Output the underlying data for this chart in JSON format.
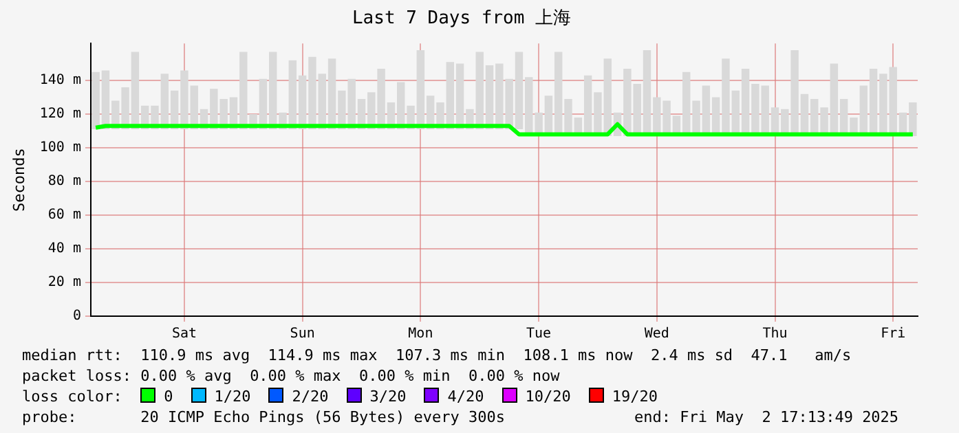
{
  "chart_data": {
    "type": "line",
    "title": "Last 7 Days from 上海",
    "ylabel": "Seconds",
    "categories": [
      null,
      null,
      null,
      null,
      null,
      null,
      null,
      null,
      null,
      "Sat",
      null,
      null,
      null,
      null,
      null,
      null,
      null,
      null,
      null,
      null,
      null,
      "Sun",
      null,
      null,
      null,
      null,
      null,
      null,
      null,
      null,
      null,
      null,
      null,
      "Mon",
      null,
      null,
      null,
      null,
      null,
      null,
      null,
      null,
      null,
      null,
      null,
      "Tue",
      null,
      null,
      null,
      null,
      null,
      null,
      null,
      null,
      null,
      null,
      null,
      "Wed",
      null,
      null,
      null,
      null,
      null,
      null,
      null,
      null,
      null,
      null,
      null,
      "Thu",
      null,
      null,
      null,
      null,
      null,
      null,
      null,
      null,
      null,
      null,
      null,
      "Fri",
      null,
      null
    ],
    "ylim": [
      0,
      162
    ],
    "yticks": [
      {
        "value": 0,
        "label": "0"
      },
      {
        "value": 20,
        "label": "20 m"
      },
      {
        "value": 40,
        "label": "40 m"
      },
      {
        "value": 60,
        "label": "60 m"
      },
      {
        "value": 80,
        "label": "80 m"
      },
      {
        "value": 100,
        "label": "100 m"
      },
      {
        "value": 120,
        "label": "120 m"
      },
      {
        "value": 140,
        "label": "140 m"
      }
    ],
    "grid": true,
    "legend": false,
    "marker": "none",
    "line_style": "solid",
    "series": [
      {
        "type": "bar",
        "color": "#d9d9d9",
        "base": [
          111,
          111,
          111,
          111,
          111,
          111,
          111,
          111,
          111,
          111,
          111,
          111,
          111,
          111,
          111,
          111,
          111,
          111,
          111,
          111,
          111,
          111,
          111,
          111,
          111,
          111,
          111,
          111,
          111,
          111,
          111,
          111,
          111,
          111,
          111,
          111,
          111,
          111,
          111,
          111,
          111,
          111,
          111,
          111,
          107,
          107,
          107,
          107,
          107,
          107,
          107,
          107,
          107,
          107,
          107,
          107,
          107,
          107,
          107,
          107,
          107,
          107,
          107,
          107,
          107,
          107,
          107,
          107,
          107,
          107,
          107,
          107,
          107,
          107,
          107,
          107,
          107,
          107,
          107,
          107,
          107,
          107,
          107,
          107
        ],
        "values": [
          34,
          35,
          17,
          25,
          46,
          14,
          14,
          33,
          23,
          35,
          26,
          12,
          24,
          18,
          19,
          46,
          9,
          30,
          46,
          10,
          41,
          32,
          43,
          33,
          42,
          23,
          30,
          18,
          22,
          36,
          16,
          28,
          14,
          47,
          20,
          16,
          40,
          39,
          12,
          46,
          38,
          39,
          30,
          46,
          35,
          14,
          24,
          50,
          22,
          11,
          36,
          26,
          46,
          14,
          40,
          31,
          51,
          23,
          21,
          12,
          38,
          21,
          30,
          23,
          46,
          27,
          40,
          31,
          30,
          17,
          16,
          51,
          25,
          22,
          17,
          43,
          22,
          11,
          30,
          40,
          37,
          41,
          14,
          20
        ]
      },
      {
        "color": "#00ff00",
        "values": [
          112,
          113,
          113,
          113,
          113,
          113,
          113,
          113,
          113,
          113,
          113,
          113,
          113,
          113,
          113,
          113,
          113,
          113,
          113,
          113,
          113,
          113,
          113,
          113,
          113,
          113,
          113,
          113,
          113,
          113,
          113,
          113,
          113,
          113,
          113,
          113,
          113,
          113,
          113,
          113,
          113,
          113,
          113,
          108,
          108,
          108,
          108,
          108,
          108,
          108,
          108,
          108,
          108,
          114,
          108,
          108,
          108,
          108,
          108,
          108,
          108,
          108,
          108,
          108,
          108,
          108,
          108,
          108,
          108,
          108,
          108,
          108,
          108,
          108,
          108,
          108,
          108,
          108,
          108,
          108,
          108,
          108,
          108,
          108
        ]
      }
    ],
    "annotations": [
      "median rtt:  110.9 ms avg  114.9 ms max  107.3 ms min  108.1 ms now  2.4 ms sd  47.1   am/s",
      "packet loss: 0.00 % avg  0.00 % max  0.00 % min  0.00 % now",
      "loss color:",
      "0",
      "1/20",
      "2/20",
      "3/20",
      "4/20",
      "10/20",
      "19/20",
      "probe:       20 ICMP Echo Pings (56 Bytes) every 300s",
      "end: Fri May  2 17:13:49 2025"
    ]
  }
}
